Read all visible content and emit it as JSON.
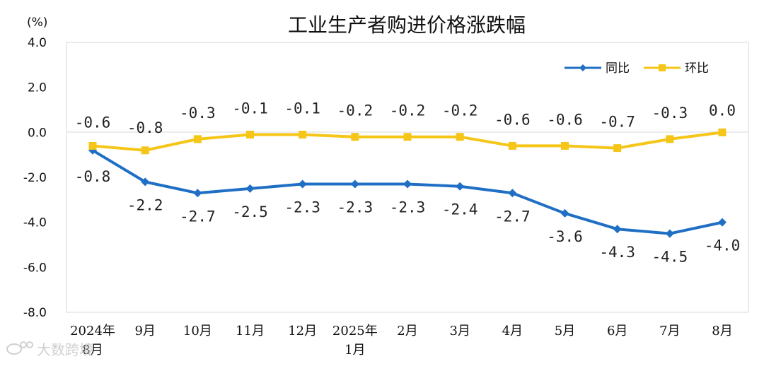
{
  "chart_data": {
    "type": "line",
    "title": "工业生产者购进价格涨跌幅",
    "unit_label": "(%)",
    "categories": [
      [
        "2024年",
        "8月"
      ],
      [
        "9月"
      ],
      [
        "10月"
      ],
      [
        "11月"
      ],
      [
        "12月"
      ],
      [
        "2025年",
        "1月"
      ],
      [
        "2月"
      ],
      [
        "3月"
      ],
      [
        "4月"
      ],
      [
        "5月"
      ],
      [
        "6月"
      ],
      [
        "7月"
      ],
      [
        "8月"
      ]
    ],
    "ylim": [
      -8.0,
      4.0
    ],
    "yticks": [
      "4.0",
      "2.0",
      "0.0",
      "-2.0",
      "-4.0",
      "-6.0",
      "-8.0"
    ],
    "ytick_values": [
      4,
      2,
      0,
      -2,
      -4,
      -6,
      -8
    ],
    "grid": false,
    "legend_position": "top-right",
    "series": [
      {
        "name": "同比",
        "color": "#1f6fc5",
        "marker": "diamond",
        "values": [
          -0.8,
          -2.2,
          -2.7,
          -2.5,
          -2.3,
          -2.3,
          -2.3,
          -2.4,
          -2.7,
          -3.6,
          -4.3,
          -4.5,
          -4.0
        ],
        "labels": [
          "-0.8",
          "-2.2",
          "-2.7",
          "-2.5",
          "-2.3",
          "-2.3",
          "-2.3",
          "-2.4",
          "-2.7",
          "-3.6",
          "-4.3",
          "-4.5",
          "-4.0"
        ]
      },
      {
        "name": "环比",
        "color": "#f5c518",
        "marker": "square",
        "values": [
          -0.6,
          -0.8,
          -0.3,
          -0.1,
          -0.1,
          -0.2,
          -0.2,
          -0.2,
          -0.6,
          -0.6,
          -0.7,
          -0.3,
          0.0
        ],
        "labels": [
          "-0.6",
          "-0.8",
          "-0.3",
          "-0.1",
          "-0.1",
          "-0.2",
          "-0.2",
          "-0.2",
          "-0.6",
          "-0.6",
          "-0.7",
          "-0.3",
          "0.0"
        ]
      }
    ]
  },
  "watermark": {
    "text": "大数跨境",
    "icon": "weibo-logo-icon"
  }
}
